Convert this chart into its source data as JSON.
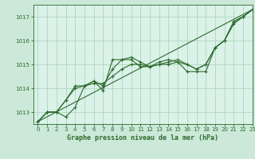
{
  "title": "Graphe pression niveau de la mer (hPa)",
  "bg_color": "#cbe8d8",
  "plot_bg_color": "#daf2e8",
  "grid_color": "#aacfba",
  "line_color": "#2d6a2d",
  "xlim": [
    -0.5,
    23
  ],
  "ylim": [
    1012.5,
    1017.5
  ],
  "yticks": [
    1013,
    1014,
    1015,
    1016,
    1017
  ],
  "xticks": [
    0,
    1,
    2,
    3,
    4,
    5,
    6,
    7,
    8,
    9,
    10,
    11,
    12,
    13,
    14,
    15,
    16,
    17,
    18,
    19,
    20,
    21,
    22,
    23
  ],
  "series1": [
    1012.6,
    1013.0,
    1013.0,
    1012.8,
    1013.2,
    1014.1,
    1014.3,
    1013.9,
    1015.2,
    1015.2,
    1015.3,
    1015.1,
    1014.9,
    1015.1,
    1015.2,
    1015.1,
    1014.7,
    1014.7,
    1014.7,
    1015.7,
    1016.0,
    1016.8,
    1017.0,
    1017.3
  ],
  "series2": [
    1012.6,
    1013.0,
    1013.0,
    1013.5,
    1014.1,
    1014.1,
    1014.3,
    1014.1,
    1014.8,
    1015.2,
    1015.2,
    1014.9,
    1014.9,
    1015.0,
    1015.1,
    1015.2,
    1015.0,
    1014.8,
    1015.0,
    1015.7,
    1016.0,
    1016.8,
    1017.0,
    1017.3
  ],
  "series3": [
    1012.6,
    1013.0,
    1013.0,
    1013.5,
    1014.0,
    1014.1,
    1014.2,
    1014.2,
    1014.5,
    1014.8,
    1015.0,
    1015.0,
    1014.9,
    1015.0,
    1015.0,
    1015.1,
    1015.0,
    1014.8,
    1015.0,
    1015.7,
    1016.0,
    1016.7,
    1017.0,
    1017.3
  ],
  "trend_x": [
    0,
    23
  ],
  "trend_y": [
    1012.6,
    1017.3
  ],
  "marker": "+",
  "markersize": 3.5,
  "linewidth": 0.8,
  "tick_fontsize": 5.0,
  "label_fontsize": 6.0
}
